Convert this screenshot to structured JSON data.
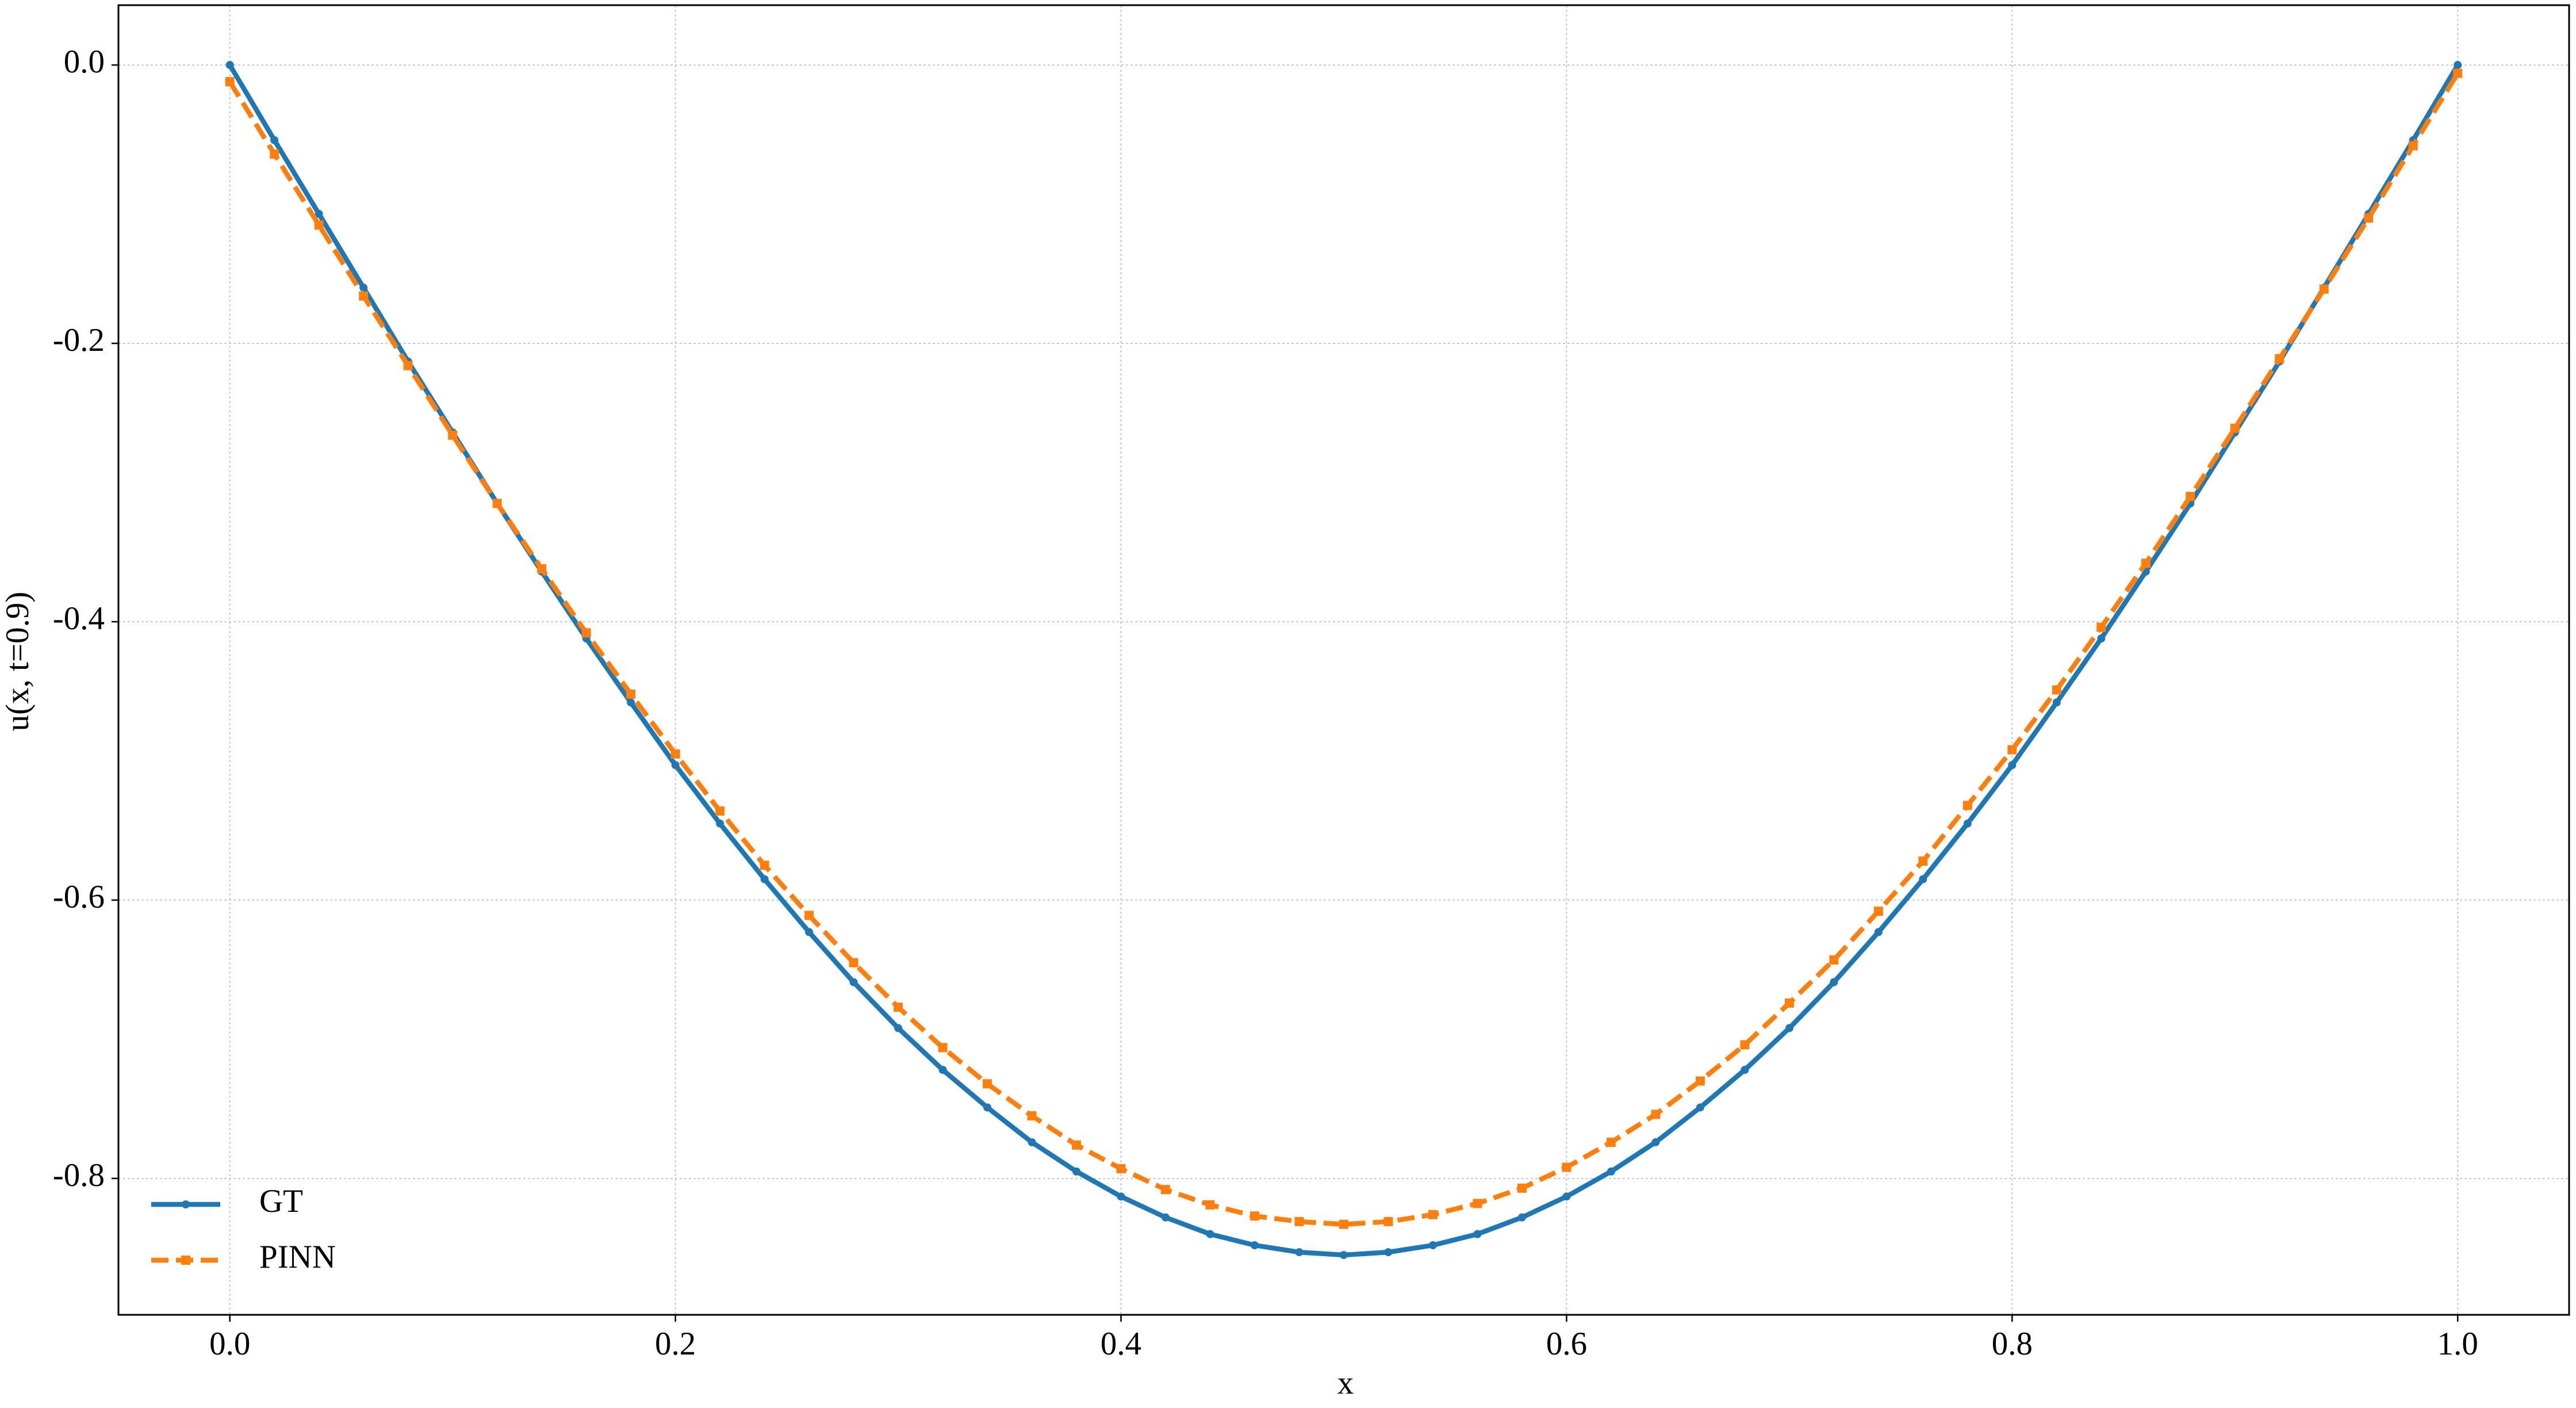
{
  "chart_data": {
    "type": "line",
    "xlabel": "x",
    "ylabel": "u(x, t=0.9)",
    "x": [
      0,
      0.02,
      0.04,
      0.06,
      0.08,
      0.1,
      0.12,
      0.14,
      0.16,
      0.18,
      0.2,
      0.22,
      0.24,
      0.26,
      0.28,
      0.3,
      0.32,
      0.34,
      0.36,
      0.38,
      0.4,
      0.42,
      0.44,
      0.46,
      0.48,
      0.5,
      0.52,
      0.54,
      0.56,
      0.58,
      0.6,
      0.62,
      0.64,
      0.66,
      0.68,
      0.7,
      0.72,
      0.74,
      0.76,
      0.78,
      0.8,
      0.82,
      0.84,
      0.86,
      0.88,
      0.9,
      0.92,
      0.94,
      0.96,
      0.98,
      1
    ],
    "series": [
      {
        "name": "GT",
        "color": "#1f77b4",
        "dash": false,
        "marker": "circle",
        "values": [
          0,
          -0.054,
          -0.107,
          -0.16,
          -0.213,
          -0.264,
          -0.315,
          -0.364,
          -0.412,
          -0.458,
          -0.503,
          -0.545,
          -0.585,
          -0.623,
          -0.659,
          -0.692,
          -0.722,
          -0.749,
          -0.774,
          -0.795,
          -0.813,
          -0.828,
          -0.84,
          -0.848,
          -0.853,
          -0.855,
          -0.853,
          -0.848,
          -0.84,
          -0.828,
          -0.813,
          -0.795,
          -0.774,
          -0.749,
          -0.722,
          -0.692,
          -0.659,
          -0.623,
          -0.585,
          -0.545,
          -0.503,
          -0.458,
          -0.412,
          -0.364,
          -0.315,
          -0.264,
          -0.213,
          -0.16,
          -0.107,
          -0.054,
          0
        ]
      },
      {
        "name": "PINN",
        "color": "#ff7f0e",
        "dash": true,
        "marker": "square",
        "values": [
          -0.012,
          -0.064,
          -0.115,
          -0.166,
          -0.216,
          -0.266,
          -0.315,
          -0.362,
          -0.408,
          -0.452,
          -0.495,
          -0.536,
          -0.575,
          -0.611,
          -0.645,
          -0.677,
          -0.706,
          -0.732,
          -0.755,
          -0.776,
          -0.793,
          -0.808,
          -0.819,
          -0.827,
          -0.831,
          -0.833,
          -0.831,
          -0.826,
          -0.818,
          -0.807,
          -0.792,
          -0.774,
          -0.754,
          -0.73,
          -0.704,
          -0.674,
          -0.643,
          -0.608,
          -0.572,
          -0.532,
          -0.492,
          -0.449,
          -0.404,
          -0.358,
          -0.31,
          -0.261,
          -0.211,
          -0.161,
          -0.11,
          -0.058,
          -0.006
        ]
      }
    ],
    "xlim": [
      -0.05,
      1.05
    ],
    "xticks": [
      {
        "value": 0,
        "label": "0.0"
      },
      0.2,
      0.4,
      0.6,
      0.8,
      {
        "value": 1,
        "label": "1.0"
      }
    ],
    "ylim": [
      -0.898,
      0.043
    ],
    "yticks": [
      {
        "value": 0,
        "label": "0.0"
      },
      -0.2,
      -0.4,
      -0.6,
      -0.8
    ],
    "grid": true,
    "legend": "lower left"
  }
}
